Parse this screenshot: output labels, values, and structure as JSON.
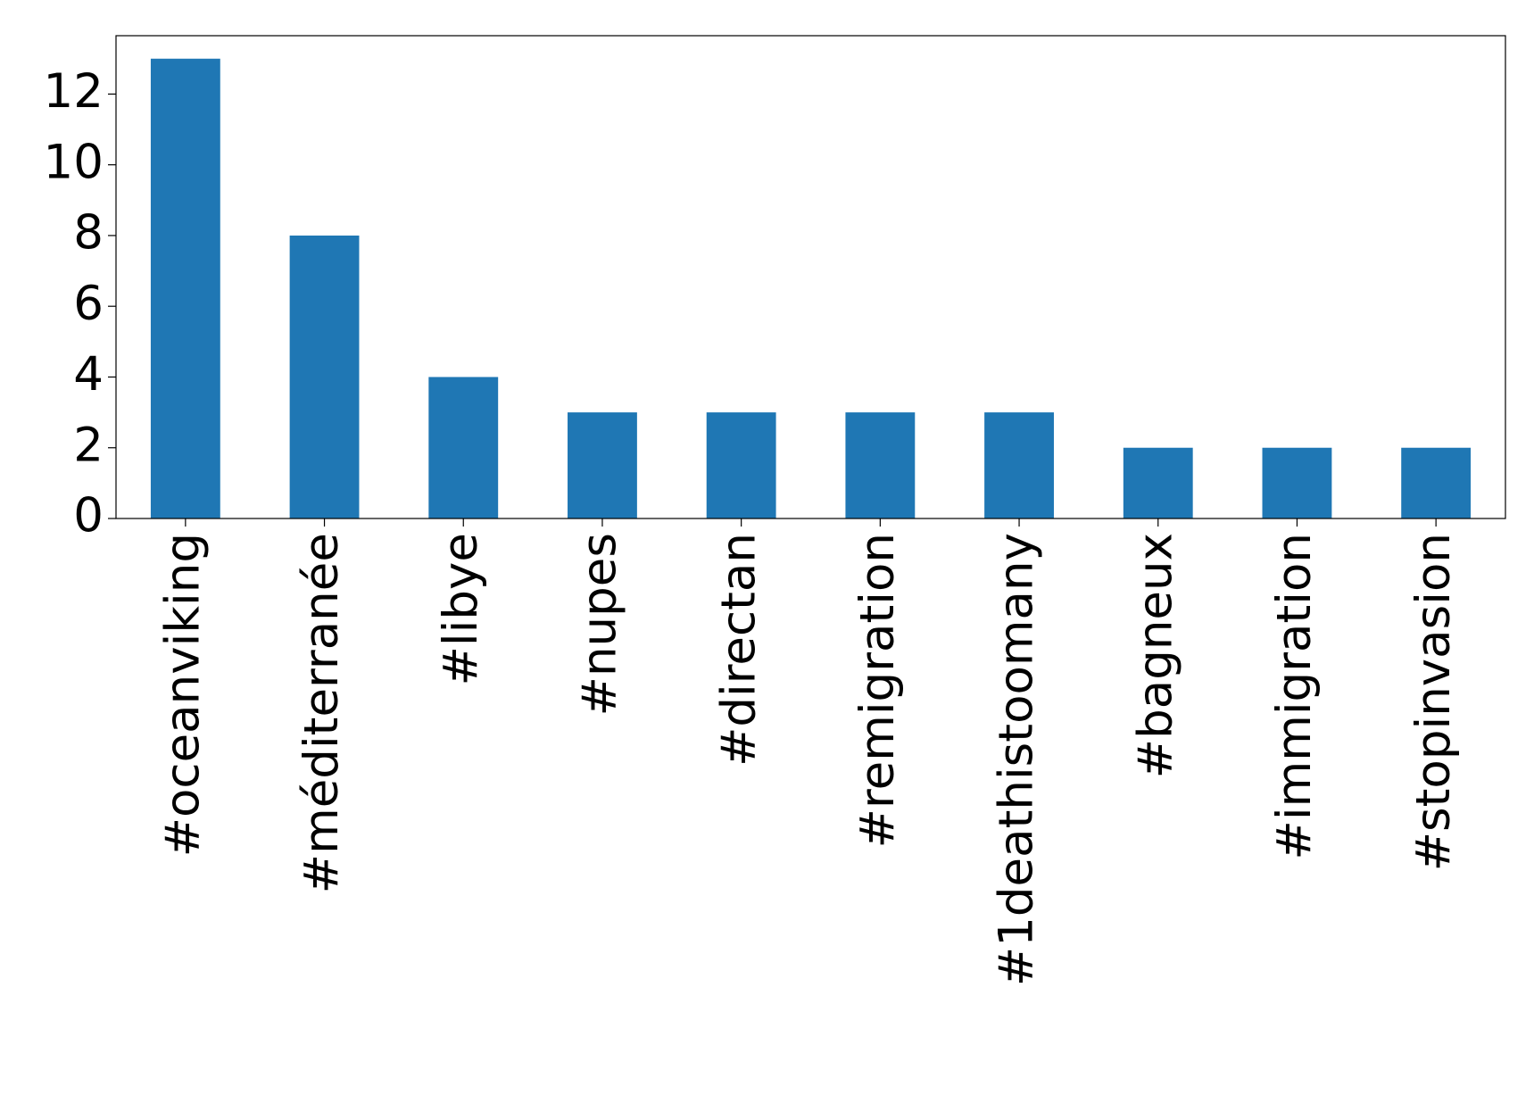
{
  "chart_data": {
    "type": "bar",
    "categories": [
      "#oceanviking",
      "#méditerranée",
      "#libye",
      "#nupes",
      "#directan",
      "#remigration",
      "#1deathistoomany",
      "#bagneux",
      "#immigration",
      "#stopinvasion"
    ],
    "values": [
      13,
      8,
      4,
      3,
      3,
      3,
      3,
      2,
      2,
      2
    ],
    "color": "#1f77b4",
    "ylim": [
      0,
      13.65
    ],
    "yticks": [
      0,
      2,
      4,
      6,
      8,
      10,
      12
    ],
    "grid": false
  }
}
